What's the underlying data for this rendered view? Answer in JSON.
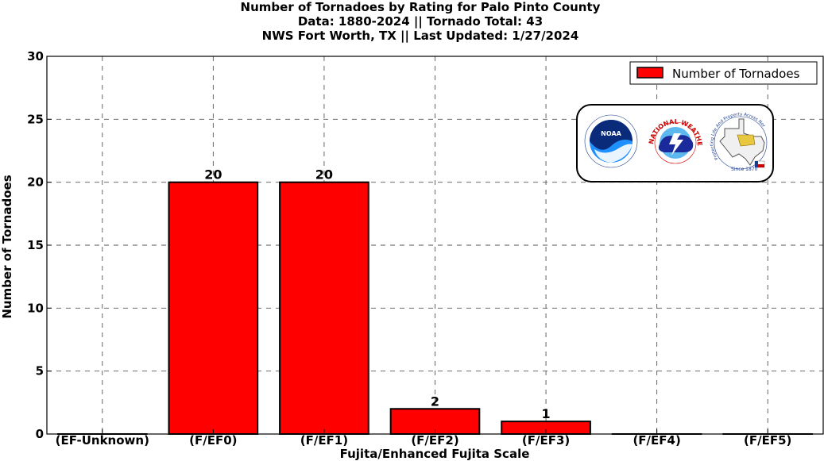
{
  "header": {
    "title_line1": "Number of Tornadoes by Rating for Palo Pinto County",
    "title_line2": "Data: 1880-2024 || Tornado Total: 43",
    "title_line3": "NWS Fort Worth, TX || Last Updated: 1/27/2024"
  },
  "logos": {
    "noaa_text": "NOAA",
    "nws_text": "NATIONAL WEATHER SERVICE",
    "texas_text": "Protecting Life And Property Across North Texas",
    "since_text": "Since 1870"
  },
  "chart_data": {
    "type": "bar",
    "categories": [
      "(EF-Unknown)",
      "(F/EF0)",
      "(F/EF1)",
      "(F/EF2)",
      "(F/EF3)",
      "(F/EF4)",
      "(F/EF5)"
    ],
    "values": [
      0,
      20,
      20,
      2,
      1,
      0,
      0
    ],
    "data_labels": [
      "",
      "20",
      "20",
      "2",
      "1",
      "",
      ""
    ],
    "series": [
      {
        "name": "Number of Tornadoes",
        "values": [
          0,
          20,
          20,
          2,
          1,
          0,
          0
        ]
      }
    ],
    "xlabel": "Fujita/Enhanced Fujita Scale",
    "ylabel": "Number of Tornadoes",
    "ylim": [
      0,
      30
    ],
    "yticks": [
      0,
      5,
      10,
      15,
      20,
      25,
      30
    ],
    "grid": true,
    "legend_position": "top-right",
    "bar_color": "#ff0000",
    "edge_color": "#000000"
  }
}
